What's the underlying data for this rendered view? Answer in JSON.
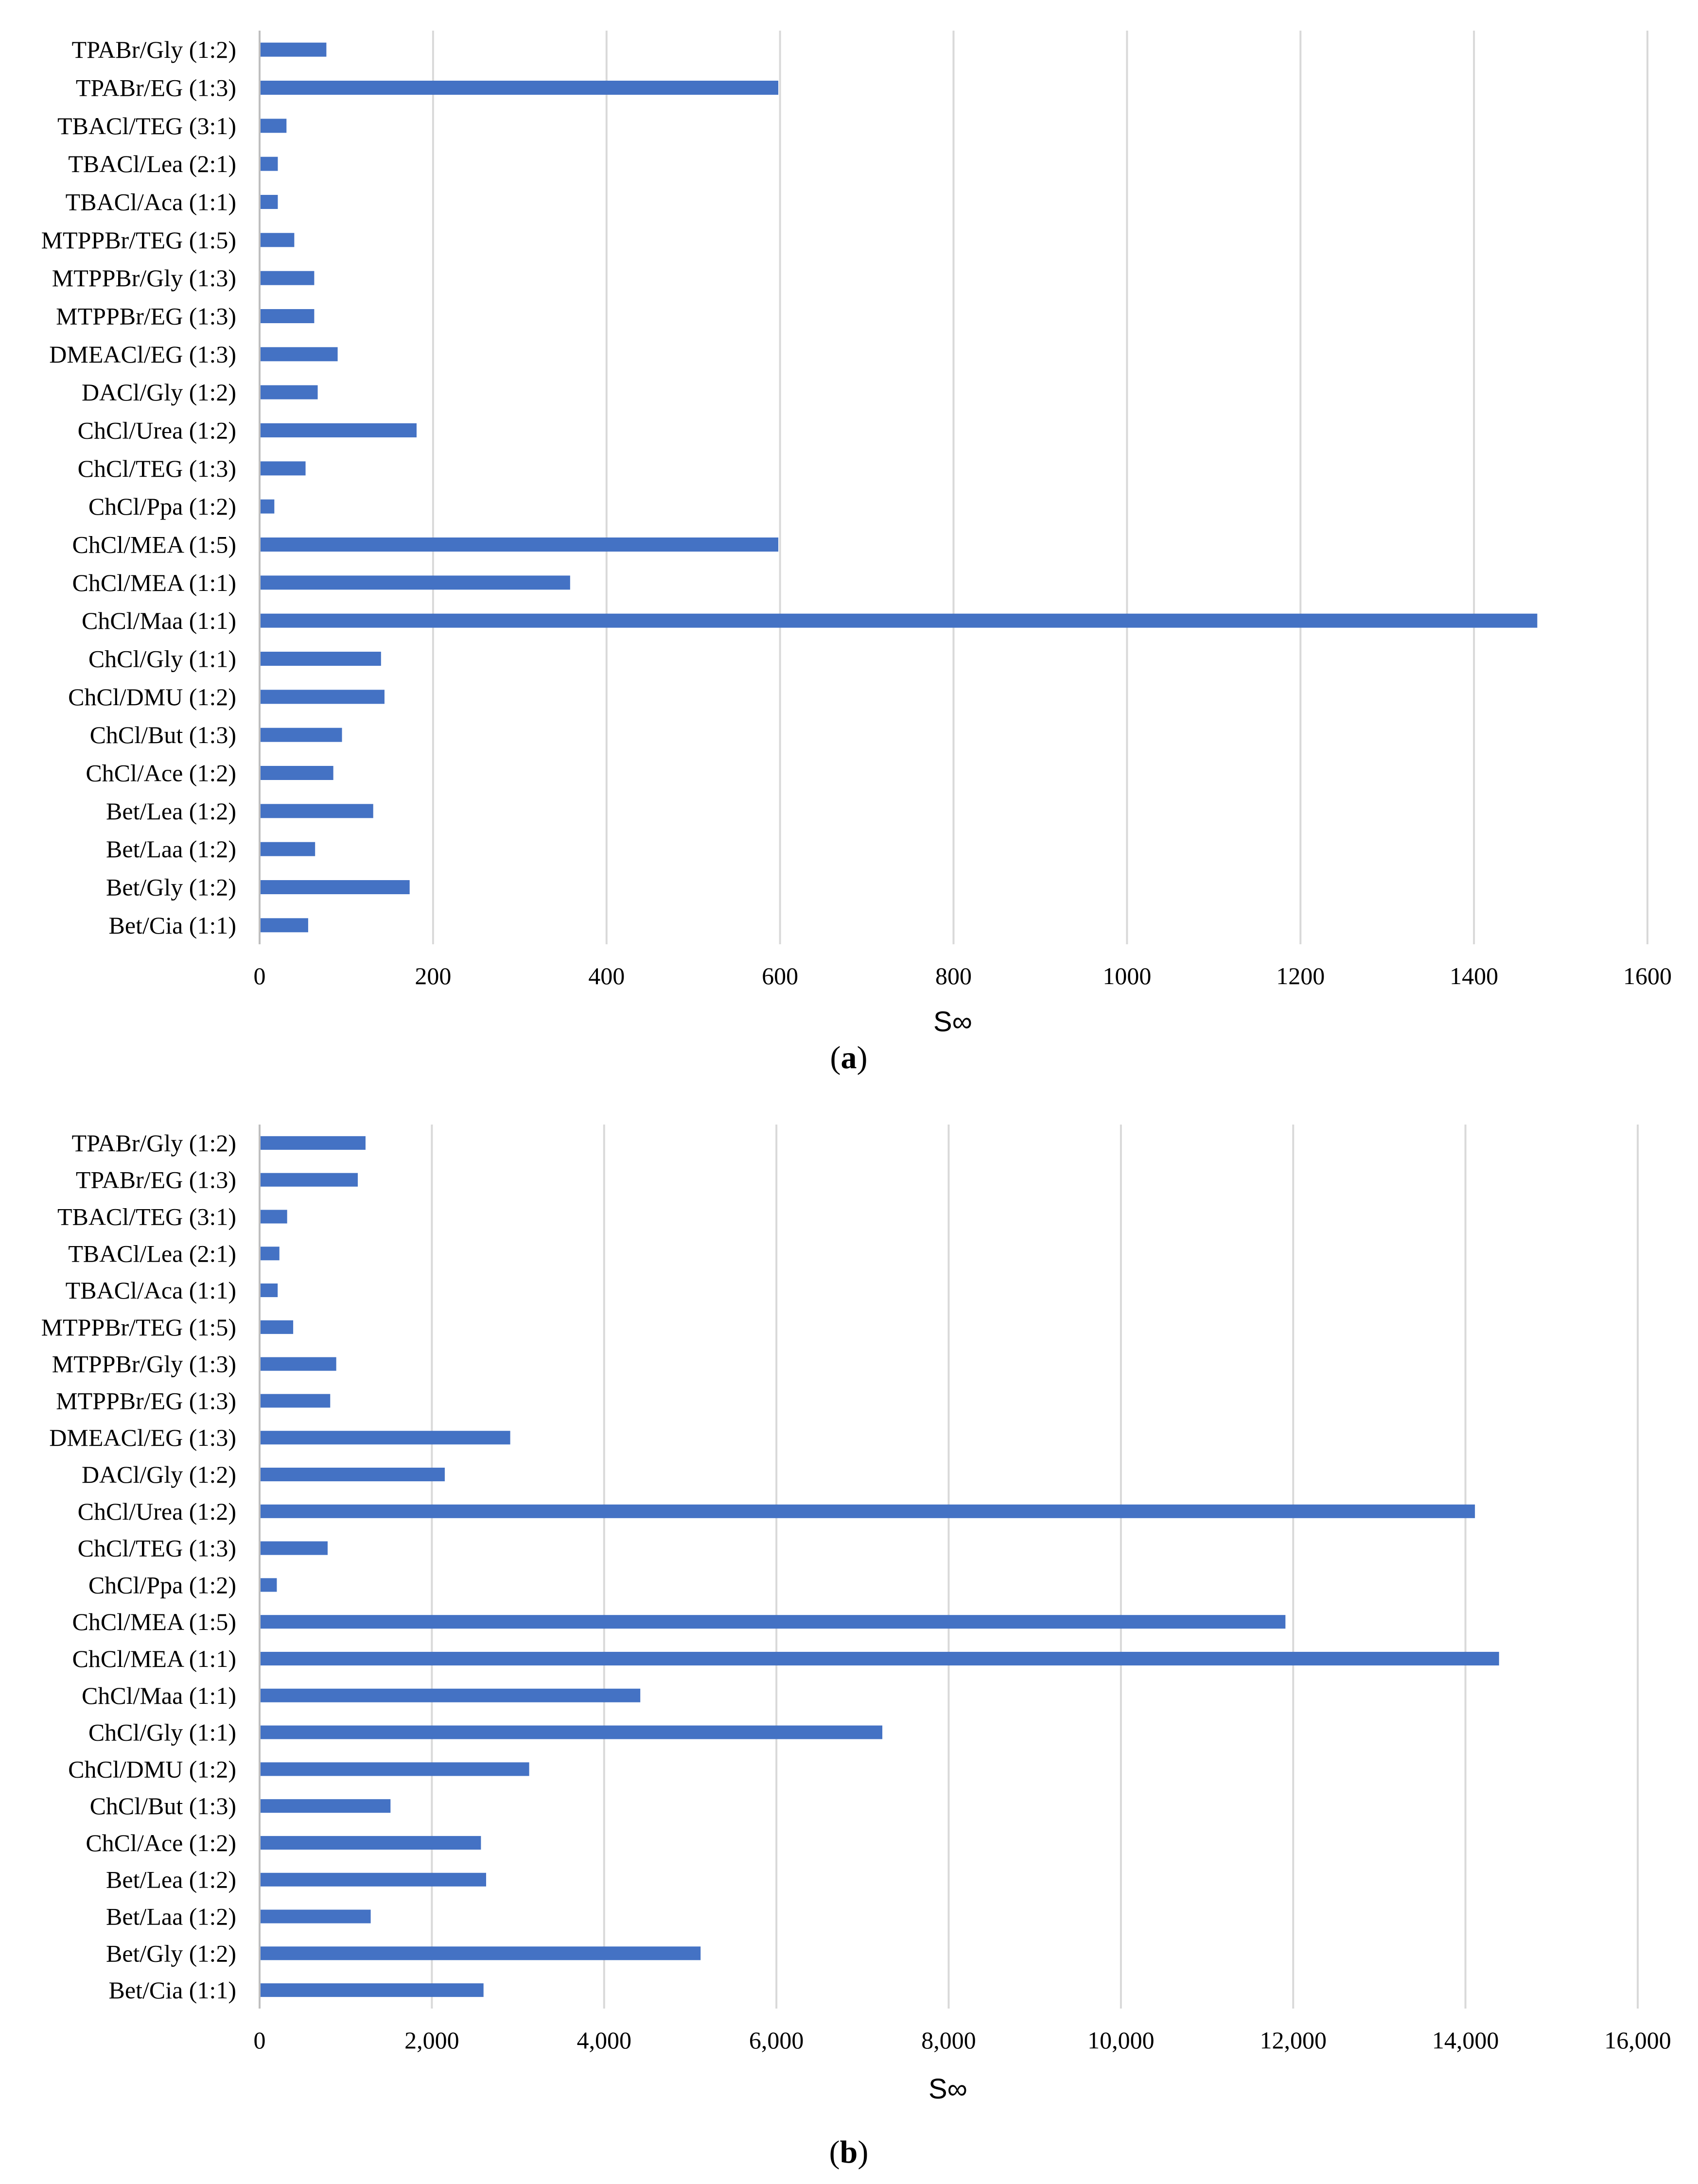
{
  "chart_data": [
    {
      "type": "bar",
      "orientation": "horizontal",
      "panel_label": "a",
      "categories": [
        "TPABr/Gly (1:2)",
        "TPABr/EG (1:3)",
        "TBACl/TEG (3:1)",
        "TBACl/Lea (2:1)",
        "TBACl/Aca (1:1)",
        "MTPPBr/TEG (1:5)",
        "MTPPBr/Gly (1:3)",
        "MTPPBr/EG (1:3)",
        "DMEACl/EG (1:3)",
        "DACl/Gly (1:2)",
        "ChCl/Urea (1:2)",
        "ChCl/TEG (1:3)",
        "ChCl/Ppa (1:2)",
        "ChCl/MEA (1:5)",
        "ChCl/MEA (1:1)",
        "ChCl/Maa (1:1)",
        "ChCl/Gly (1:1)",
        "ChCl/DMU (1:2)",
        "ChCl/But (1:3)",
        "ChCl/Ace (1:2)",
        "Bet/Lea (1:2)",
        "Bet/Laa (1:2)",
        "Bet/Gly (1:2)",
        "Bet/Cia (1:1)"
      ],
      "values": [
        77,
        598,
        31,
        21,
        21,
        40,
        63,
        63,
        90,
        67,
        181,
        53,
        17,
        598,
        358,
        1473,
        140,
        144,
        95,
        85,
        131,
        64,
        173,
        56
      ],
      "xlabel": "S∞",
      "xlim": [
        0,
        1600
      ],
      "xticks": [
        0,
        200,
        400,
        600,
        800,
        1000,
        1200,
        1400,
        1600
      ],
      "xtick_labels": [
        "0",
        "200",
        "400",
        "600",
        "800",
        "1000",
        "1200",
        "1400",
        "1600"
      ],
      "grid": "vertical",
      "bar_color": "#4472C4"
    },
    {
      "type": "bar",
      "orientation": "horizontal",
      "panel_label": "b",
      "categories": [
        "TPABr/Gly (1:2)",
        "TPABr/EG (1:3)",
        "TBACl/TEG (3:1)",
        "TBACl/Lea (2:1)",
        "TBACl/Aca (1:1)",
        "MTPPBr/TEG (1:5)",
        "MTPPBr/Gly (1:3)",
        "MTPPBr/EG (1:3)",
        "DMEACl/EG (1:3)",
        "DACl/Gly (1:2)",
        "ChCl/Urea (1:2)",
        "ChCl/TEG (1:3)",
        "ChCl/Ppa (1:2)",
        "ChCl/MEA (1:5)",
        "ChCl/MEA (1:1)",
        "ChCl/Maa (1:1)",
        "ChCl/Gly (1:1)",
        "ChCl/DMU (1:2)",
        "ChCl/But (1:3)",
        "ChCl/Ace (1:2)",
        "Bet/Lea (1:2)",
        "Bet/Laa (1:2)",
        "Bet/Gly (1:2)",
        "Bet/Cia (1:1)"
      ],
      "values": [
        1230,
        1140,
        320,
        230,
        210,
        390,
        890,
        820,
        2910,
        2150,
        14110,
        790,
        200,
        11910,
        14390,
        4420,
        7230,
        3130,
        1520,
        2570,
        2630,
        1290,
        5120,
        2600
      ],
      "xlabel": "S∞",
      "xlim": [
        0,
        16000
      ],
      "xticks": [
        0,
        2000,
        4000,
        6000,
        8000,
        10000,
        12000,
        14000,
        16000
      ],
      "xtick_labels": [
        "0",
        "2,000",
        "4,000",
        "6,000",
        "8,000",
        "10,000",
        "12,000",
        "14,000",
        "16,000"
      ],
      "grid": "vertical",
      "bar_color": "#4472C4"
    }
  ],
  "captions": {
    "a": {
      "open": "(",
      "letter": "a",
      "close": ")"
    },
    "b": {
      "open": "(",
      "letter": "b",
      "close": ")"
    }
  }
}
